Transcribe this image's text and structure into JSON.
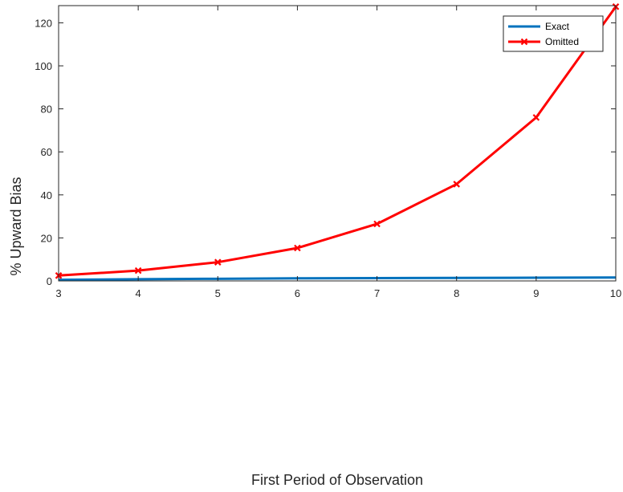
{
  "chart_data": {
    "type": "line",
    "title": "",
    "xlabel": "First Period of Observation",
    "ylabel": "% Upward Bias",
    "xlim": [
      3,
      10
    ],
    "ylim": [
      0,
      128
    ],
    "xticks": [
      3,
      4,
      5,
      6,
      7,
      8,
      9,
      10
    ],
    "yticks": [
      0,
      20,
      40,
      60,
      80,
      100,
      120
    ],
    "grid": false,
    "legend_position": "top-right",
    "x": [
      3,
      4,
      5,
      6,
      7,
      8,
      9,
      10
    ],
    "series": [
      {
        "name": "Exact",
        "color": "#0072BD",
        "marker": "none",
        "values": [
          0.5,
          0.8,
          1.0,
          1.2,
          1.3,
          1.4,
          1.5,
          1.6
        ]
      },
      {
        "name": "Omitted",
        "color": "#FF0000",
        "marker": "x",
        "values": [
          2.5,
          4.8,
          8.7,
          15.3,
          26.5,
          45.0,
          76.0,
          127.5
        ]
      }
    ]
  }
}
